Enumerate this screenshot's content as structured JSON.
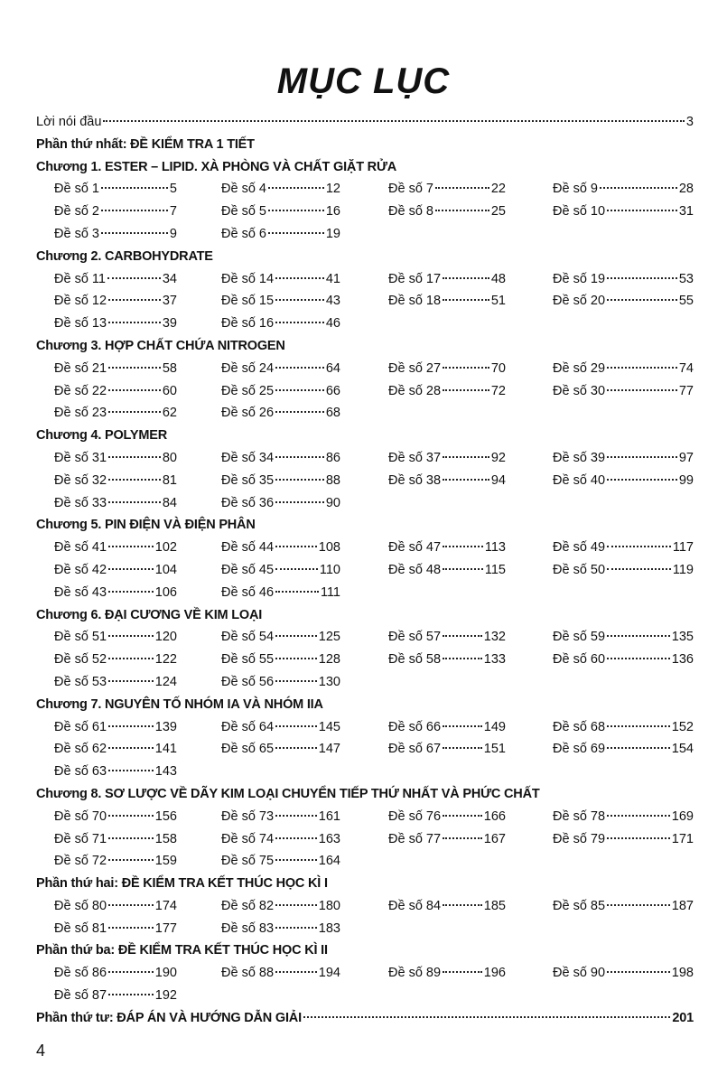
{
  "title": "MỤC LỤC",
  "intro": {
    "label": "Lời nói đầu",
    "page": 3
  },
  "blocks": [
    {
      "heading": "Phần thứ nhất: ĐỀ KIỂM TRA 1 TIẾT"
    },
    {
      "heading": "Chương 1. ESTER – LIPID. XÀ PHÒNG VÀ CHẤT GIẶT RỬA",
      "rows": [
        [
          {
            "label": "Đề số 1",
            "page": 5
          },
          {
            "label": "Đề số 4",
            "page": 12
          },
          {
            "label": "Đề số 7",
            "page": 22
          },
          {
            "label": "Đề số 9",
            "page": 28
          }
        ],
        [
          {
            "label": "Đề số 2",
            "page": 7
          },
          {
            "label": "Đề số 5",
            "page": 16
          },
          {
            "label": "Đề số 8",
            "page": 25
          },
          {
            "label": "Đề số 10",
            "page": 31
          }
        ],
        [
          {
            "label": "Đề số 3",
            "page": 9
          },
          {
            "label": "Đề số 6",
            "page": 19
          }
        ]
      ]
    },
    {
      "heading": "Chương 2. CARBOHYDRATE",
      "rows": [
        [
          {
            "label": "Đề số 11",
            "page": 34
          },
          {
            "label": "Đề số 14",
            "page": 41
          },
          {
            "label": "Đề số 17",
            "page": 48
          },
          {
            "label": "Đề số 19",
            "page": 53
          }
        ],
        [
          {
            "label": "Đề số 12",
            "page": 37
          },
          {
            "label": "Đề số 15",
            "page": 43
          },
          {
            "label": "Đề số 18",
            "page": 51
          },
          {
            "label": "Đề số 20",
            "page": 55
          }
        ],
        [
          {
            "label": "Đề số 13",
            "page": 39
          },
          {
            "label": "Đề số 16",
            "page": 46
          }
        ]
      ]
    },
    {
      "heading": "Chương 3. HỢP CHẤT CHỨA NITROGEN",
      "rows": [
        [
          {
            "label": "Đề số 21",
            "page": 58
          },
          {
            "label": "Đề số 24",
            "page": 64
          },
          {
            "label": "Đề số 27",
            "page": 70
          },
          {
            "label": "Đề số 29",
            "page": 74
          }
        ],
        [
          {
            "label": "Đề số 22",
            "page": 60
          },
          {
            "label": "Đề số 25",
            "page": 66
          },
          {
            "label": "Đề số 28",
            "page": 72
          },
          {
            "label": "Đề số 30",
            "page": 77
          }
        ],
        [
          {
            "label": "Đề số 23",
            "page": 62
          },
          {
            "label": "Đề số 26",
            "page": 68
          }
        ]
      ]
    },
    {
      "heading": "Chương 4. POLYMER",
      "rows": [
        [
          {
            "label": "Đề số 31",
            "page": 80
          },
          {
            "label": "Đề số 34",
            "page": 86
          },
          {
            "label": "Đề số 37",
            "page": 92
          },
          {
            "label": "Đề số 39",
            "page": 97
          }
        ],
        [
          {
            "label": "Đề số 32",
            "page": 81
          },
          {
            "label": "Đề số 35",
            "page": 88
          },
          {
            "label": "Đề số 38",
            "page": 94
          },
          {
            "label": "Đề số 40",
            "page": 99
          }
        ],
        [
          {
            "label": "Đề số 33",
            "page": 84
          },
          {
            "label": "Đề số 36",
            "page": 90
          }
        ]
      ]
    },
    {
      "heading": "Chương 5. PIN ĐIỆN VÀ ĐIỆN PHÂN",
      "rows": [
        [
          {
            "label": "Đề số 41",
            "page": 102
          },
          {
            "label": "Đề số 44",
            "page": 108
          },
          {
            "label": "Đề số 47",
            "page": 113
          },
          {
            "label": "Đề số 49",
            "page": 117
          }
        ],
        [
          {
            "label": "Đề số 42",
            "page": 104
          },
          {
            "label": "Đề số 45",
            "page": 110
          },
          {
            "label": "Đề số 48",
            "page": 115
          },
          {
            "label": "Đề số 50",
            "page": 119
          }
        ],
        [
          {
            "label": "Đề số 43",
            "page": 106
          },
          {
            "label": "Đề số 46",
            "page": 111
          }
        ]
      ]
    },
    {
      "heading": "Chương 6. ĐẠI CƯƠNG VỀ KIM LOẠI",
      "rows": [
        [
          {
            "label": "Đề số 51",
            "page": 120
          },
          {
            "label": "Đề số 54",
            "page": 125
          },
          {
            "label": "Đề số 57",
            "page": 132
          },
          {
            "label": "Đề số 59",
            "page": 135
          }
        ],
        [
          {
            "label": "Đề số 52",
            "page": 122
          },
          {
            "label": "Đề số 55",
            "page": 128
          },
          {
            "label": "Đề số 58",
            "page": 133
          },
          {
            "label": "Đề số 60",
            "page": 136
          }
        ],
        [
          {
            "label": "Đề số 53",
            "page": 124
          },
          {
            "label": "Đề số 56",
            "page": 130
          }
        ]
      ]
    },
    {
      "heading": "Chương 7. NGUYÊN TỐ NHÓM IA VÀ NHÓM IIA",
      "rows": [
        [
          {
            "label": "Đề số 61",
            "page": 139
          },
          {
            "label": "Đề số 64",
            "page": 145
          },
          {
            "label": "Đề số 66",
            "page": 149
          },
          {
            "label": "Đề số 68",
            "page": 152
          }
        ],
        [
          {
            "label": "Đề số 62",
            "page": 141
          },
          {
            "label": "Đề số 65",
            "page": 147
          },
          {
            "label": "Đề số 67",
            "page": 151
          },
          {
            "label": "Đề số 69",
            "page": 154
          }
        ],
        [
          {
            "label": "Đề số 63",
            "page": 143
          }
        ]
      ]
    },
    {
      "heading": "Chương 8. SƠ LƯỢC VỀ DÃY KIM LOẠI CHUYỂN TIẾP THỨ NHẤT VÀ PHỨC CHẤT",
      "rows": [
        [
          {
            "label": "Đề số 70",
            "page": 156
          },
          {
            "label": "Đề số 73",
            "page": 161
          },
          {
            "label": "Đề số 76",
            "page": 166
          },
          {
            "label": "Đề số 78",
            "page": 169
          }
        ],
        [
          {
            "label": "Đề số 71",
            "page": 158
          },
          {
            "label": "Đề số 74",
            "page": 163
          },
          {
            "label": "Đề số 77",
            "page": 167
          },
          {
            "label": "Đề số 79",
            "page": 171
          }
        ],
        [
          {
            "label": "Đề số 72",
            "page": 159
          },
          {
            "label": "Đề số 75",
            "page": 164
          }
        ]
      ]
    },
    {
      "heading": "Phần thứ hai: ĐỀ KIỂM TRA KẾT THÚC HỌC KÌ I",
      "rows": [
        [
          {
            "label": "Đề số 80",
            "page": 174
          },
          {
            "label": "Đề số 82",
            "page": 180
          },
          {
            "label": "Đề số 84",
            "page": 185
          },
          {
            "label": "Đề số 85",
            "page": 187
          }
        ],
        [
          {
            "label": "Đề số 81",
            "page": 177
          },
          {
            "label": "Đề số 83",
            "page": 183
          }
        ]
      ]
    },
    {
      "heading": "Phần thứ ba: ĐỀ KIỂM TRA KẾT THÚC HỌC KÌ II",
      "rows": [
        [
          {
            "label": "Đề số 86",
            "page": 190
          },
          {
            "label": "Đề số 88",
            "page": 194
          },
          {
            "label": "Đề số 89",
            "page": 196
          },
          {
            "label": "Đề số 90",
            "page": 198
          }
        ],
        [
          {
            "label": "Đề số 87",
            "page": 192
          }
        ]
      ]
    }
  ],
  "final": {
    "label": "Phần thứ tư: ĐÁP ÁN VÀ HƯỚNG DẪN GIẢI",
    "page": 201
  },
  "page_number": 4
}
